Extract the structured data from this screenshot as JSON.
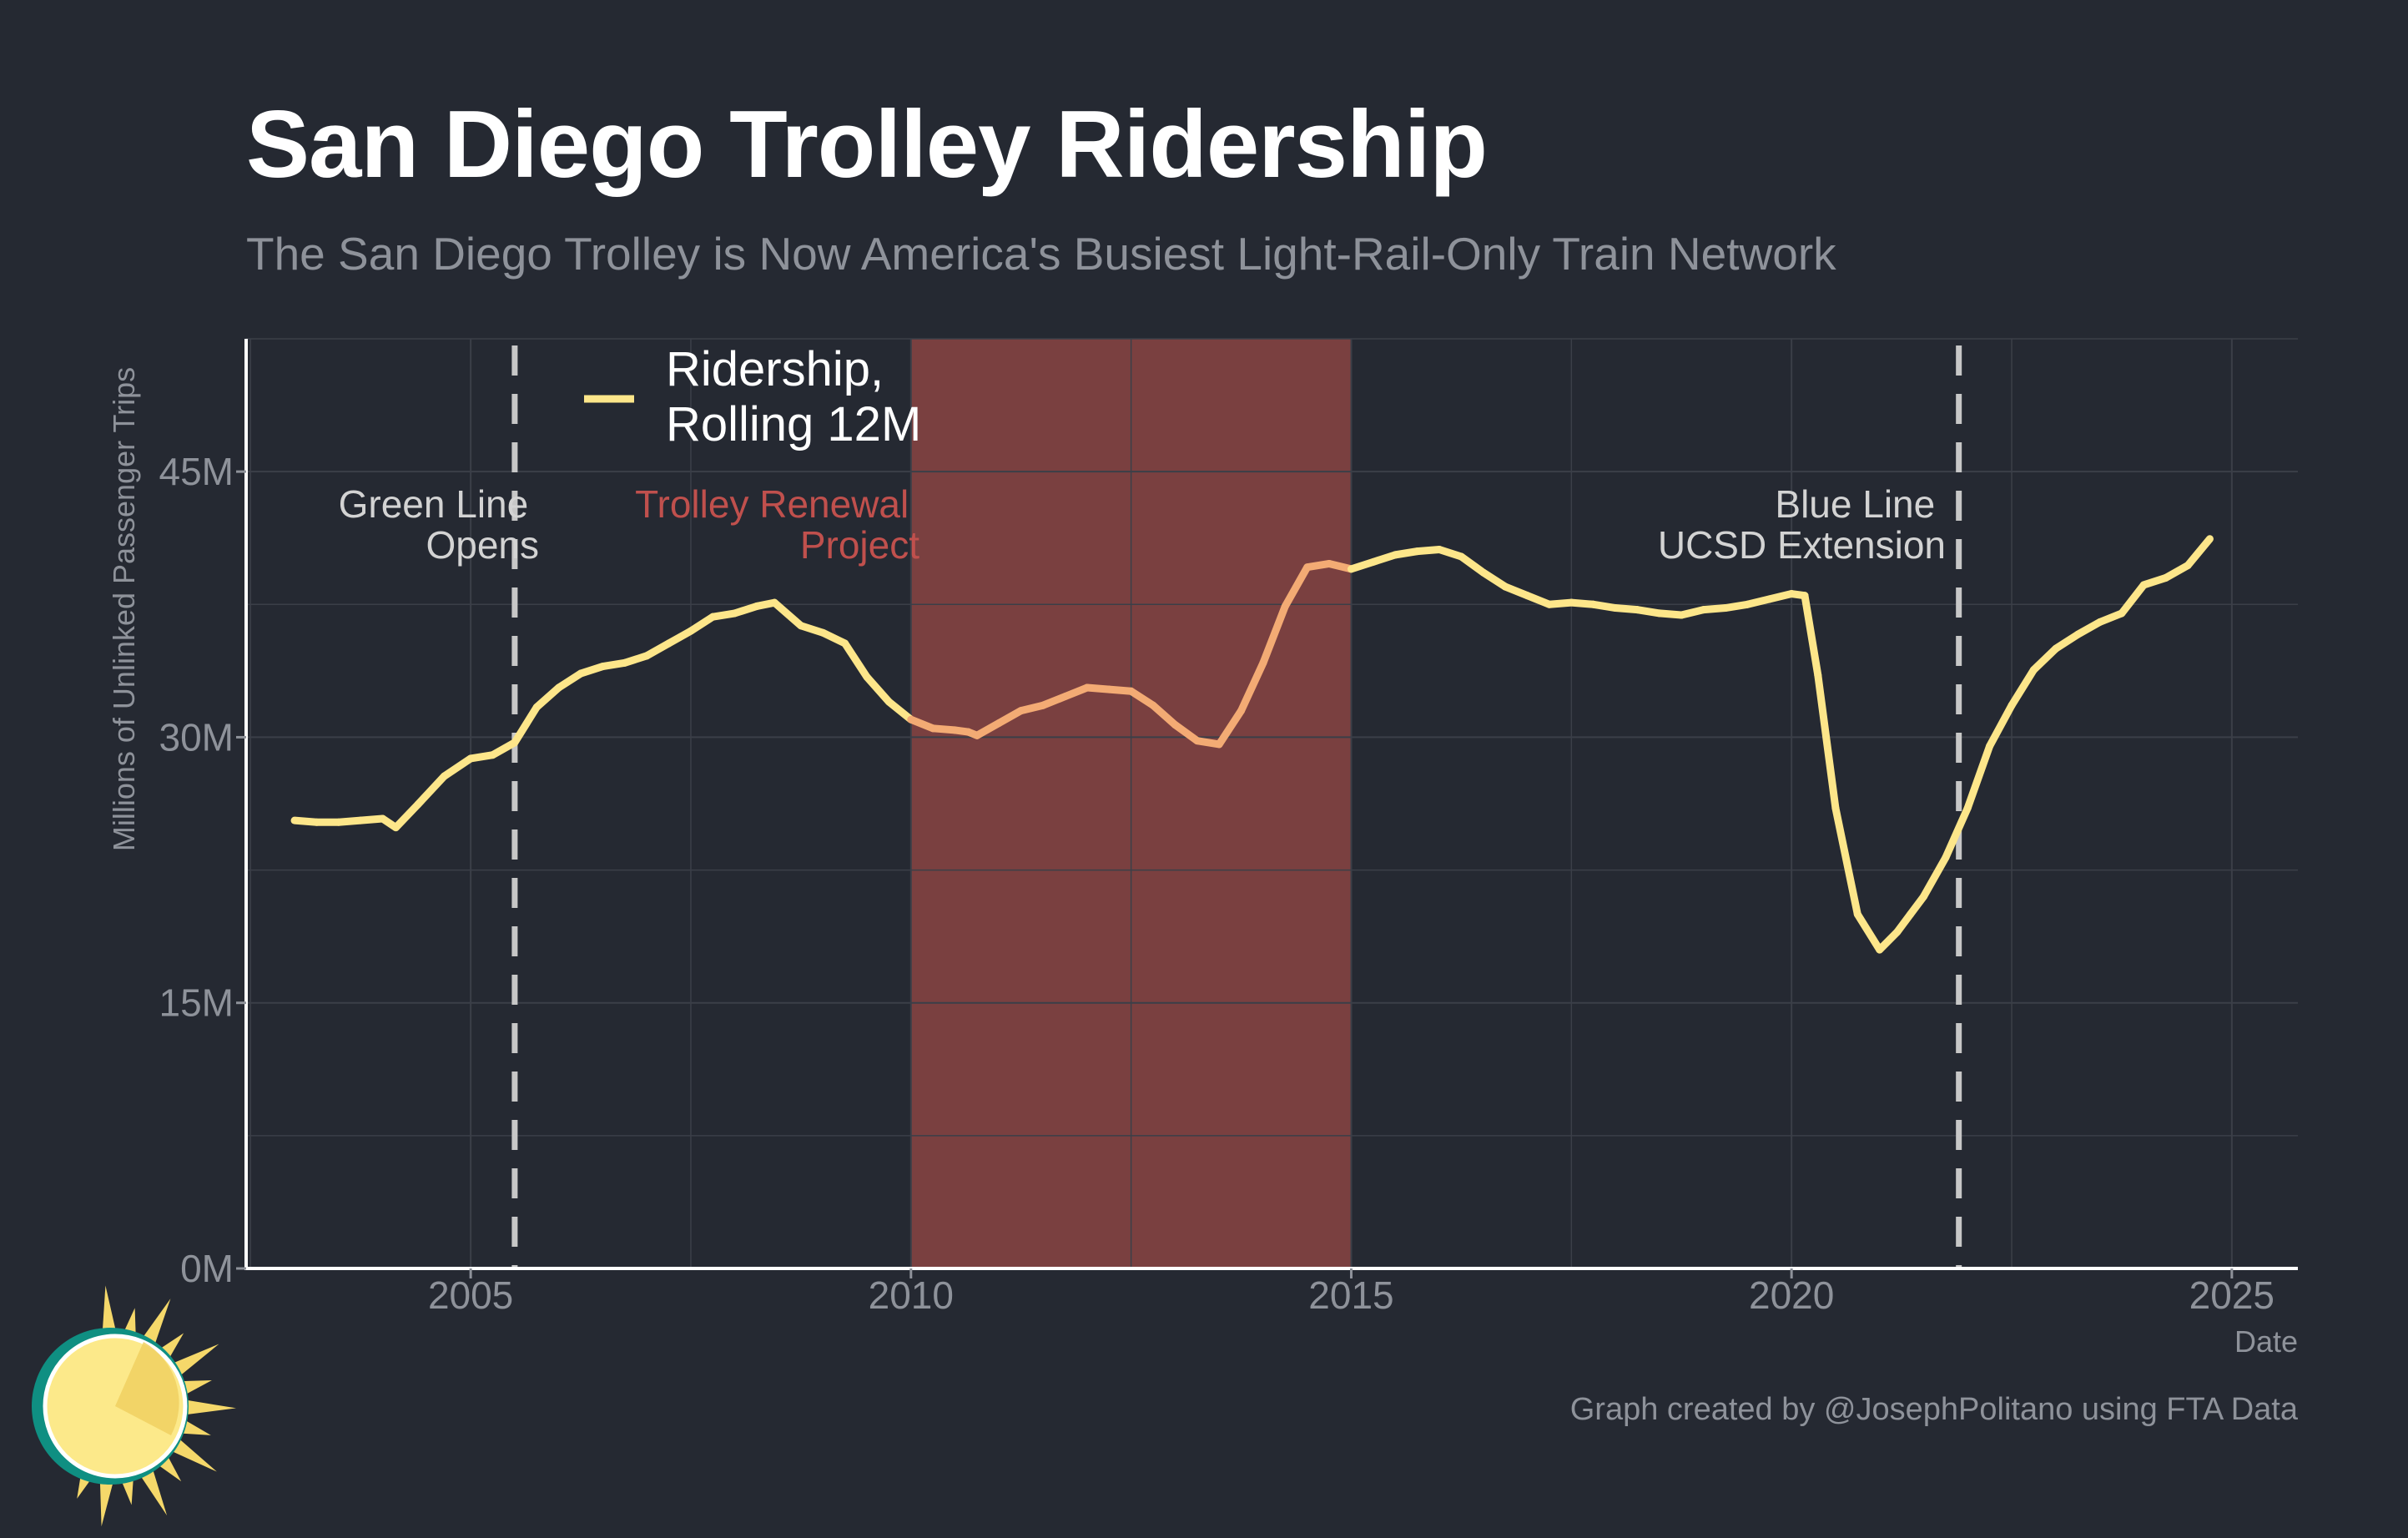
{
  "title": "San Diego Trolley Ridership",
  "subtitle": "The San Diego Trolley is Now America's Busiest Light-Rail-Only Train Network",
  "caption": "Graph created by @JosephPolitano using FTA Data",
  "colors": {
    "background": "#252932",
    "line": "#fde68a",
    "line_during_renewal": "#f3ab74",
    "shade": "#7a4040",
    "shade_label": "#c0504d",
    "dash": "#c7c7c7",
    "grid": "#3b3f48",
    "text_muted": "#8e929a",
    "text_light": "#d3d3d3"
  },
  "chart_data": {
    "type": "line",
    "title": "San Diego Trolley Ridership",
    "subtitle": "The San Diego Trolley is Now America's Busiest Light-Rail-Only Train Network",
    "xlabel": "Date",
    "ylabel": "Millions of Unlinked Passenger Trips",
    "xlim": [
      2002.45,
      2025.75
    ],
    "ylim": [
      0,
      52.5
    ],
    "x_ticks": [
      2005,
      2010,
      2015,
      2020,
      2025
    ],
    "x_tick_labels": [
      "2005",
      "2010",
      "2015",
      "2020",
      "2025"
    ],
    "y_ticks": [
      0,
      15,
      30,
      45
    ],
    "y_tick_labels": [
      "0M",
      "15M",
      "30M",
      "45M"
    ],
    "grid": true,
    "legend_position": "top-left",
    "series": [
      {
        "name": "Ridership, Rolling 12M",
        "x": [
          2003.0,
          2003.25,
          2003.5,
          2003.75,
          2004.0,
          2004.15,
          2004.4,
          2004.7,
          2005.0,
          2005.25,
          2005.5,
          2005.75,
          2006.0,
          2006.25,
          2006.5,
          2006.75,
          2007.0,
          2007.25,
          2007.5,
          2007.75,
          2008.0,
          2008.25,
          2008.45,
          2008.75,
          2009.0,
          2009.25,
          2009.5,
          2009.75,
          2010.0,
          2010.25,
          2010.5,
          2010.65,
          2010.75,
          2011.0,
          2011.25,
          2011.5,
          2011.75,
          2012.0,
          2012.25,
          2012.5,
          2012.75,
          2013.0,
          2013.25,
          2013.5,
          2013.75,
          2014.0,
          2014.25,
          2014.5,
          2014.75,
          2015.0,
          2015.25,
          2015.5,
          2015.75,
          2016.0,
          2016.25,
          2016.5,
          2016.75,
          2017.0,
          2017.25,
          2017.5,
          2017.75,
          2018.0,
          2018.25,
          2018.5,
          2018.75,
          2019.0,
          2019.25,
          2019.5,
          2019.75,
          2020.0,
          2020.15,
          2020.3,
          2020.5,
          2020.75,
          2021.0,
          2021.2,
          2021.35,
          2021.5,
          2021.75,
          2022.0,
          2022.25,
          2022.5,
          2022.75,
          2023.0,
          2023.25,
          2023.5,
          2023.75,
          2024.0,
          2024.25,
          2024.5,
          2024.75
        ],
        "values": [
          25.3,
          25.2,
          25.2,
          25.3,
          25.4,
          24.9,
          26.2,
          27.8,
          28.8,
          29.0,
          29.7,
          31.7,
          32.8,
          33.6,
          34.0,
          34.2,
          34.6,
          35.3,
          36.0,
          36.8,
          37.0,
          37.4,
          37.6,
          36.3,
          35.9,
          35.3,
          33.4,
          32.0,
          31.0,
          30.5,
          30.4,
          30.3,
          30.1,
          30.8,
          31.5,
          31.8,
          32.3,
          32.8,
          32.7,
          32.6,
          31.8,
          30.7,
          29.8,
          29.6,
          31.5,
          34.2,
          37.4,
          39.6,
          39.8,
          39.5,
          39.9,
          40.3,
          40.5,
          40.6,
          40.2,
          39.3,
          38.5,
          38.0,
          37.5,
          37.6,
          37.5,
          37.3,
          37.2,
          37.0,
          36.9,
          37.2,
          37.3,
          37.5,
          37.8,
          38.1,
          38.0,
          33.5,
          26.0,
          20.0,
          18.0,
          19.0,
          20.0,
          21.0,
          23.2,
          26.0,
          29.5,
          31.8,
          33.8,
          35.0,
          35.8,
          36.5,
          37.0,
          38.6,
          39.0,
          39.7,
          41.2
        ]
      }
    ],
    "shaded_regions": [
      {
        "x": [
          2010.0,
          2015.0
        ],
        "label": "Trolley Renewal\nProject"
      }
    ],
    "vertical_lines": [
      {
        "x": 2005.5,
        "label": "Green Line\nOpens"
      },
      {
        "x": 2021.9,
        "label": "Blue Line\nUCSD Extension"
      }
    ]
  }
}
